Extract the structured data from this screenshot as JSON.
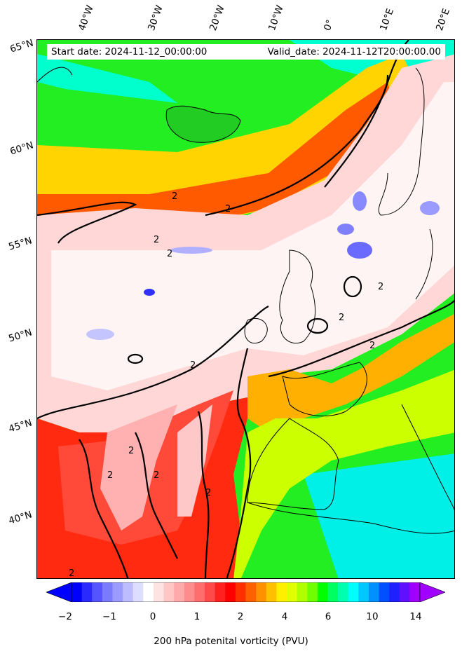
{
  "map": {
    "start_date": "Start date: 2024-11-12_00:00:00",
    "valid_date": "Valid_date: 2024-11-12T20:00:00.00",
    "contour_label": "2",
    "lon_labels": [
      "40°W",
      "30°W",
      "20°W",
      "10°W",
      "0°",
      "10°E",
      "20°E"
    ],
    "lat_labels": [
      "65°N",
      "60°N",
      "55°N",
      "50°N",
      "45°N",
      "40°N"
    ]
  },
  "colorbar": {
    "title": "200 hPa potenital vorticity (PVU)",
    "ticks": [
      "−2",
      "−1",
      "0",
      "1",
      "2",
      "4",
      "6",
      "10",
      "14"
    ],
    "colors": [
      "#0000ff",
      "#2a2aff",
      "#5555ff",
      "#7a7aff",
      "#9b9bff",
      "#bcbcff",
      "#ddddff",
      "#ffffff",
      "#ffe3e3",
      "#ffc6c6",
      "#ffaaaa",
      "#ff8c8c",
      "#ff6e6e",
      "#ff4a4a",
      "#ff2020",
      "#ff0000",
      "#ff3000",
      "#ff6000",
      "#ff9000",
      "#ffc000",
      "#fff000",
      "#e0ff00",
      "#b0ff00",
      "#70ff00",
      "#00ff00",
      "#00ff60",
      "#00ffb0",
      "#00ffff",
      "#00c8ff",
      "#0090ff",
      "#0050ff",
      "#2020ff",
      "#6010ff",
      "#a000ff"
    ]
  }
}
